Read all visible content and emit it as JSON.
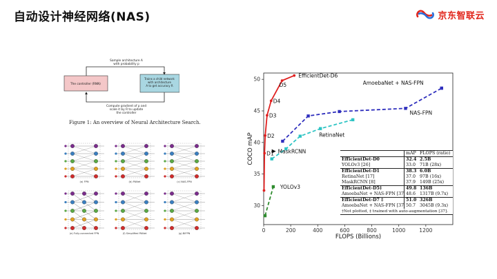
{
  "slide": {
    "title": "自动设计神经网络(NAS)"
  },
  "brand": {
    "name": "京东智联云",
    "logo_icon": "jd-cloud-logo-icon",
    "color": "#e1251b"
  },
  "nas_figure": {
    "top_arrow_text_1": "Sample architecture A",
    "top_arrow_text_2": "with probability p",
    "controller_label": "The controller (RNN)",
    "child_text_1": "Trains a child network",
    "child_text_2": "with architecture",
    "child_text_3": "A to get accuracy R",
    "bottom_text_1": "Compute gradient of p and",
    "bottom_text_2": "scale it by R to update",
    "bottom_text_3": "the controller",
    "caption": "Figure 1: An overview of Neural Architecture Search.",
    "controller_color": "#f4c7c8",
    "child_color": "#a9d7e2"
  },
  "fpn_figure": {
    "panels": [
      {
        "caption": "(a) FPN"
      },
      {
        "caption": "(b) PANet"
      },
      {
        "caption": "(c) NAS-FPN"
      },
      {
        "caption": "(e) Fully-connected FPN"
      },
      {
        "caption": "(f) Simplified PANet"
      },
      {
        "caption": "(g) BiFPN"
      }
    ],
    "level_colors": [
      "#7a2c8c",
      "#3a7fc0",
      "#5aa945",
      "#e0a020",
      "#d02b2b"
    ]
  },
  "chart_data": {
    "type": "line",
    "xlabel": "FLOPS (Billions)",
    "ylabel": "COCO mAP",
    "xlim": [
      0,
      1400
    ],
    "ylim": [
      27,
      51
    ],
    "xticks": [
      0,
      200,
      400,
      600,
      800,
      1000,
      1200
    ],
    "yticks": [
      30,
      35,
      40,
      45,
      50
    ],
    "series": [
      {
        "name": "EfficientDet-D6",
        "color": "#e02020",
        "style": "solid",
        "points": [
          [
            2.5,
            32.4
          ],
          [
            6.0,
            38.3
          ],
          [
            11,
            41.1
          ],
          [
            25,
            44.3
          ],
          [
            55,
            46.6
          ],
          [
            136,
            49.8
          ],
          [
            226,
            50.6
          ]
        ],
        "point_labels": [
          "",
          "D1",
          "D2",
          "D3",
          "D4",
          "D5",
          ""
        ]
      },
      {
        "name": "AmoebaNet + NAS-FPN",
        "color": "#2e2ebd",
        "style": "dashed",
        "points": [
          [
            140,
            40.2
          ],
          [
            330,
            44.2
          ],
          [
            560,
            44.9
          ],
          [
            1050,
            45.4
          ],
          [
            1317,
            48.6
          ],
          [
            1317,
            48.6
          ]
        ]
      },
      {
        "name": "RetinaNet",
        "color": "#2ec4c4",
        "style": "dashed",
        "points": [
          [
            60,
            37.4
          ],
          [
            165,
            39.0
          ],
          [
            270,
            41.0
          ],
          [
            420,
            42.2
          ],
          [
            660,
            43.6
          ]
        ]
      },
      {
        "name": "YOLOv3",
        "color": "#2e8b2e",
        "style": "dashed",
        "points": [
          [
            10,
            28.4
          ],
          [
            71,
            33.0
          ]
        ]
      }
    ],
    "annotations": [
      "NAS-FPN",
      "MaskRCNN"
    ]
  },
  "table": {
    "header": {
      "model": "",
      "map": "mAP",
      "flops": "FLOPS (ratio)"
    },
    "rows": [
      {
        "model": "EfficientDet-D0",
        "map": "32.4",
        "flops": "2.5B",
        "bold": true,
        "sep": false
      },
      {
        "model": "YOLOv3 [26]",
        "map": "33.0",
        "flops": "71B (28x)",
        "bold": false,
        "sep": false
      },
      {
        "model": "EfficientDet-D1",
        "map": "38.3",
        "flops": "6.0B",
        "bold": true,
        "sep": true
      },
      {
        "model": "RetinaNet [17]",
        "map": "37.0",
        "flops": "97B (16x)",
        "bold": false,
        "sep": false
      },
      {
        "model": "MaskRCNN [8]",
        "map": "37.9",
        "flops": "149B (25x)",
        "bold": false,
        "sep": false
      },
      {
        "model": "EfficientDet-D5‡",
        "map": "49.8",
        "flops": "136B",
        "bold": true,
        "sep": true
      },
      {
        "model": "AmoebaNet + NAS-FPN [37]‡",
        "map": "48.6",
        "flops": "1317B (9.7x)",
        "bold": false,
        "sep": false
      },
      {
        "model": "EfficientDet-D7 ‡",
        "map": "51.0",
        "flops": "326B",
        "bold": true,
        "sep": true
      },
      {
        "model": "AmoebaNet + NAS-FPN [37]†‡",
        "map": "50.7",
        "flops": "3045B (9.3x)",
        "bold": false,
        "sep": false
      }
    ],
    "note": "†Not plotted, ‡ trained with auto-augmentation [37]."
  }
}
